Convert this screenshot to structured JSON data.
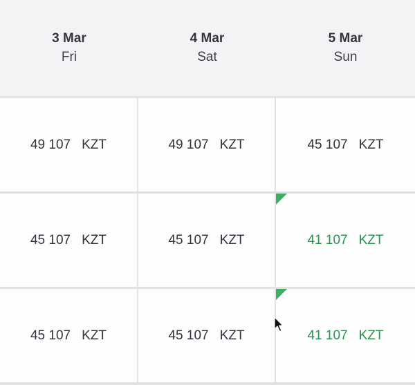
{
  "days": [
    {
      "date": "3 Mar",
      "weekday": "Fri"
    },
    {
      "date": "4 Mar",
      "weekday": "Sat"
    },
    {
      "date": "5 Mar",
      "weekday": "Sun"
    }
  ],
  "rows": [
    [
      {
        "amount": "49 107",
        "currency": "KZT",
        "best": false
      },
      {
        "amount": "49 107",
        "currency": "KZT",
        "best": false
      },
      {
        "amount": "45 107",
        "currency": "KZT",
        "best": false
      }
    ],
    [
      {
        "amount": "45 107",
        "currency": "KZT",
        "best": false
      },
      {
        "amount": "45 107",
        "currency": "KZT",
        "best": false
      },
      {
        "amount": "41 107",
        "currency": "KZT",
        "best": true
      }
    ],
    [
      {
        "amount": "45 107",
        "currency": "KZT",
        "best": false
      },
      {
        "amount": "45 107",
        "currency": "KZT",
        "best": false
      },
      {
        "amount": "41 107",
        "currency": "KZT",
        "best": true
      }
    ]
  ],
  "colors": {
    "best_price_text": "#27924c",
    "best_price_marker": "#3fae63",
    "header_bg": "#f3f3f6"
  },
  "icons": {
    "cheapest_marker": "corner-triangle-icon",
    "cursor": "mouse-pointer-icon"
  }
}
